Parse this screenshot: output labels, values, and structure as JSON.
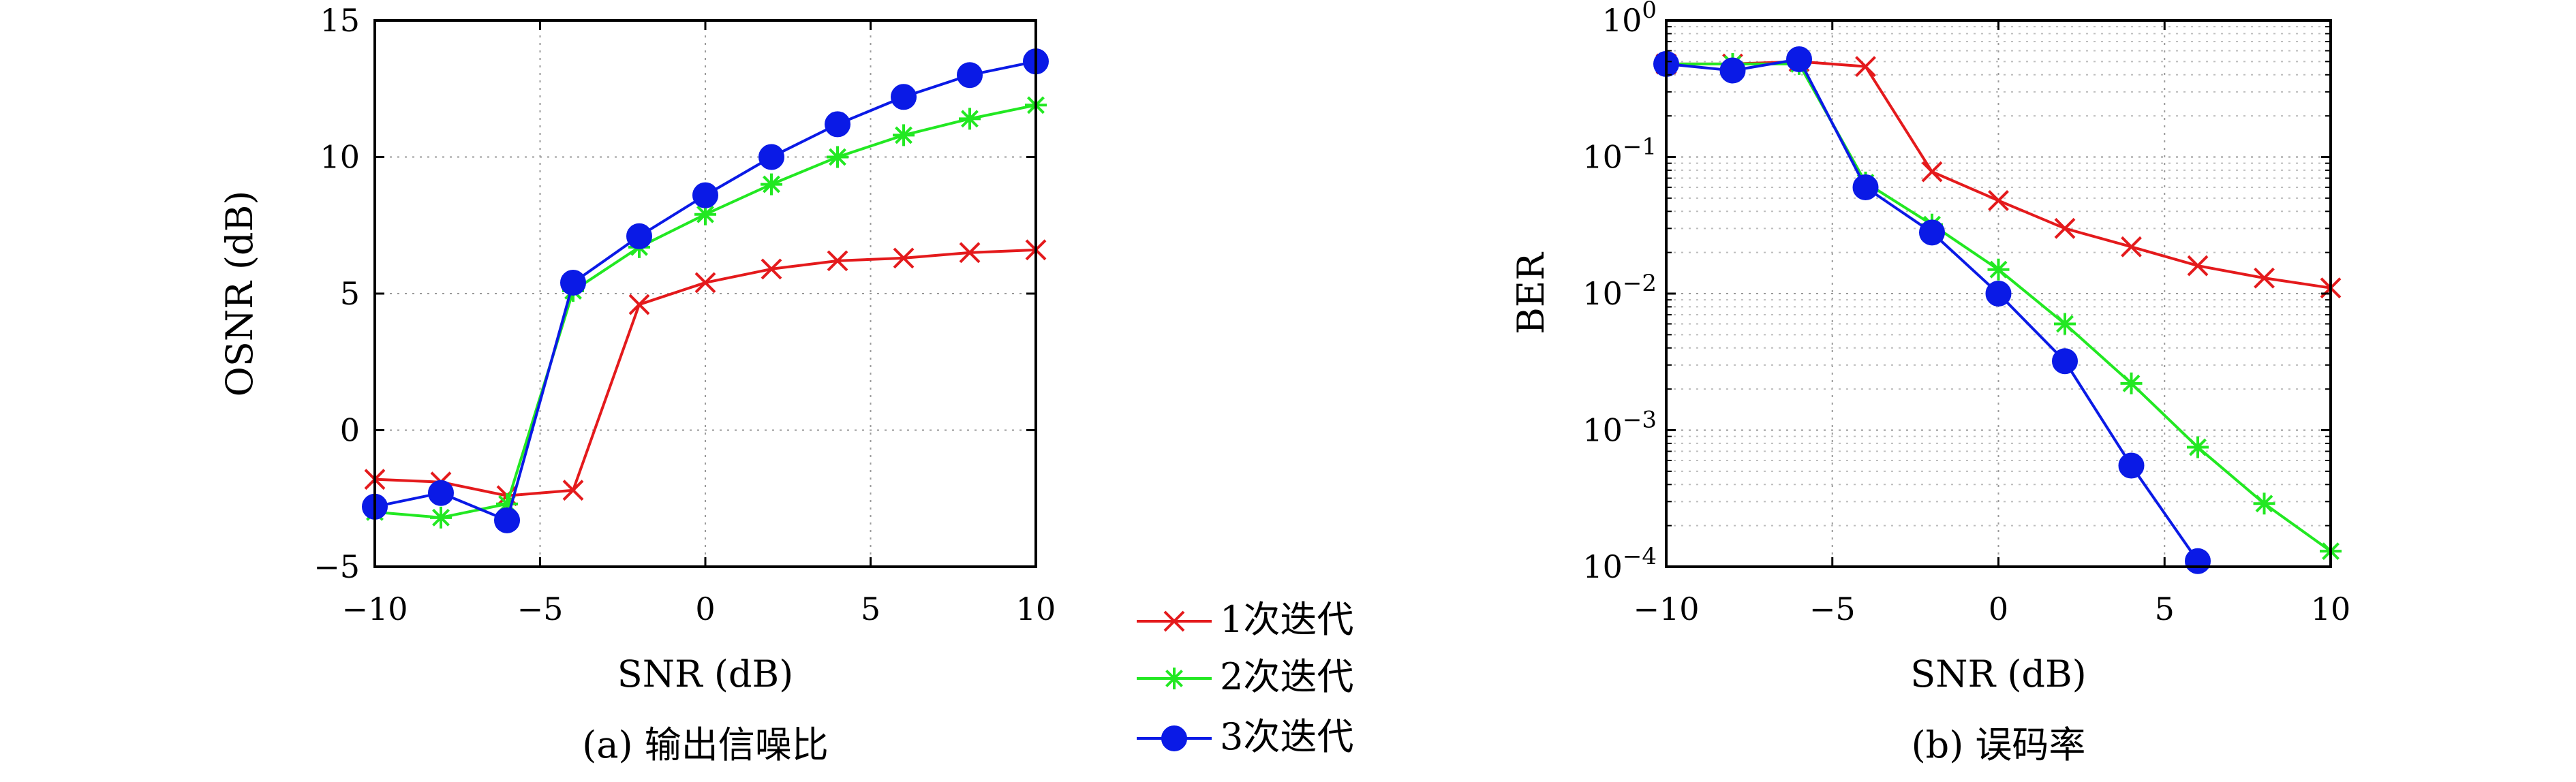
{
  "legend": {
    "placement": "bottom-center",
    "entries": [
      {
        "label": "1次迭代",
        "color": "#e41a1c",
        "marker": "cross"
      },
      {
        "label": "2次迭代",
        "color": "#22e822",
        "marker": "star"
      },
      {
        "label": "3次迭代",
        "color": "#0a1ae6",
        "marker": "filled-circle"
      }
    ]
  },
  "chart_data": [
    {
      "type": "line",
      "caption": "(a) 输出信噪比",
      "xlabel": "SNR (dB)",
      "ylabel": "OSNR (dB)",
      "xlim": [
        -10,
        10
      ],
      "ylim": [
        -5,
        15
      ],
      "xscale": "linear",
      "yscale": "linear",
      "xticks": [
        -10,
        -5,
        0,
        5,
        10
      ],
      "yticks": [
        -5,
        0,
        5,
        10,
        15
      ],
      "xtick_labels": [
        "−10",
        "−5",
        "0",
        "5",
        "10"
      ],
      "ytick_labels": [
        "−5",
        "0",
        "5",
        "10",
        "15"
      ],
      "grid": true,
      "x": [
        -10,
        -8,
        -6,
        -4,
        -2,
        0,
        2,
        4,
        6,
        8,
        10
      ],
      "series": [
        {
          "name": "1次迭代",
          "values": [
            -1.8,
            -1.9,
            -2.4,
            -2.2,
            4.6,
            5.4,
            5.9,
            6.2,
            6.3,
            6.5,
            6.6
          ]
        },
        {
          "name": "2次迭代",
          "values": [
            -3.0,
            -3.2,
            -2.7,
            5.1,
            6.7,
            7.9,
            9.0,
            10.0,
            10.8,
            11.4,
            11.9
          ]
        },
        {
          "name": "3次迭代",
          "values": [
            -2.8,
            -2.3,
            -3.3,
            5.4,
            7.1,
            8.6,
            10.0,
            11.2,
            12.2,
            13.0,
            13.5
          ]
        }
      ]
    },
    {
      "type": "line",
      "caption": "(b) 误码率",
      "xlabel": "SNR (dB)",
      "ylabel": "BER",
      "xlim": [
        -10,
        10
      ],
      "ylim": [
        0.0001,
        1
      ],
      "xscale": "linear",
      "yscale": "log",
      "xticks": [
        -10,
        -5,
        0,
        5,
        10
      ],
      "xtick_labels": [
        "−10",
        "−5",
        "0",
        "5",
        "10"
      ],
      "ytick_exponents": [
        "0",
        "−1",
        "−2",
        "−3",
        "−4"
      ],
      "ytick_base": "10",
      "grid": true,
      "x": [
        -10,
        -8,
        -6,
        -4,
        -2,
        0,
        2,
        4,
        6,
        8,
        10
      ],
      "series": [
        {
          "name": "1次迭代",
          "values": [
            0.48,
            0.48,
            0.5,
            0.46,
            0.078,
            0.048,
            0.03,
            0.022,
            0.016,
            0.013,
            0.011
          ]
        },
        {
          "name": "2次迭代",
          "values": [
            0.48,
            0.48,
            0.48,
            0.065,
            0.032,
            0.015,
            0.006,
            0.0022,
            0.00075,
            0.00029,
            0.00013
          ]
        },
        {
          "name": "3次迭代",
          "values": [
            0.48,
            0.43,
            0.52,
            0.06,
            0.028,
            0.01,
            0.0032,
            0.00055,
            0.00011,
            null,
            null
          ]
        }
      ]
    }
  ]
}
